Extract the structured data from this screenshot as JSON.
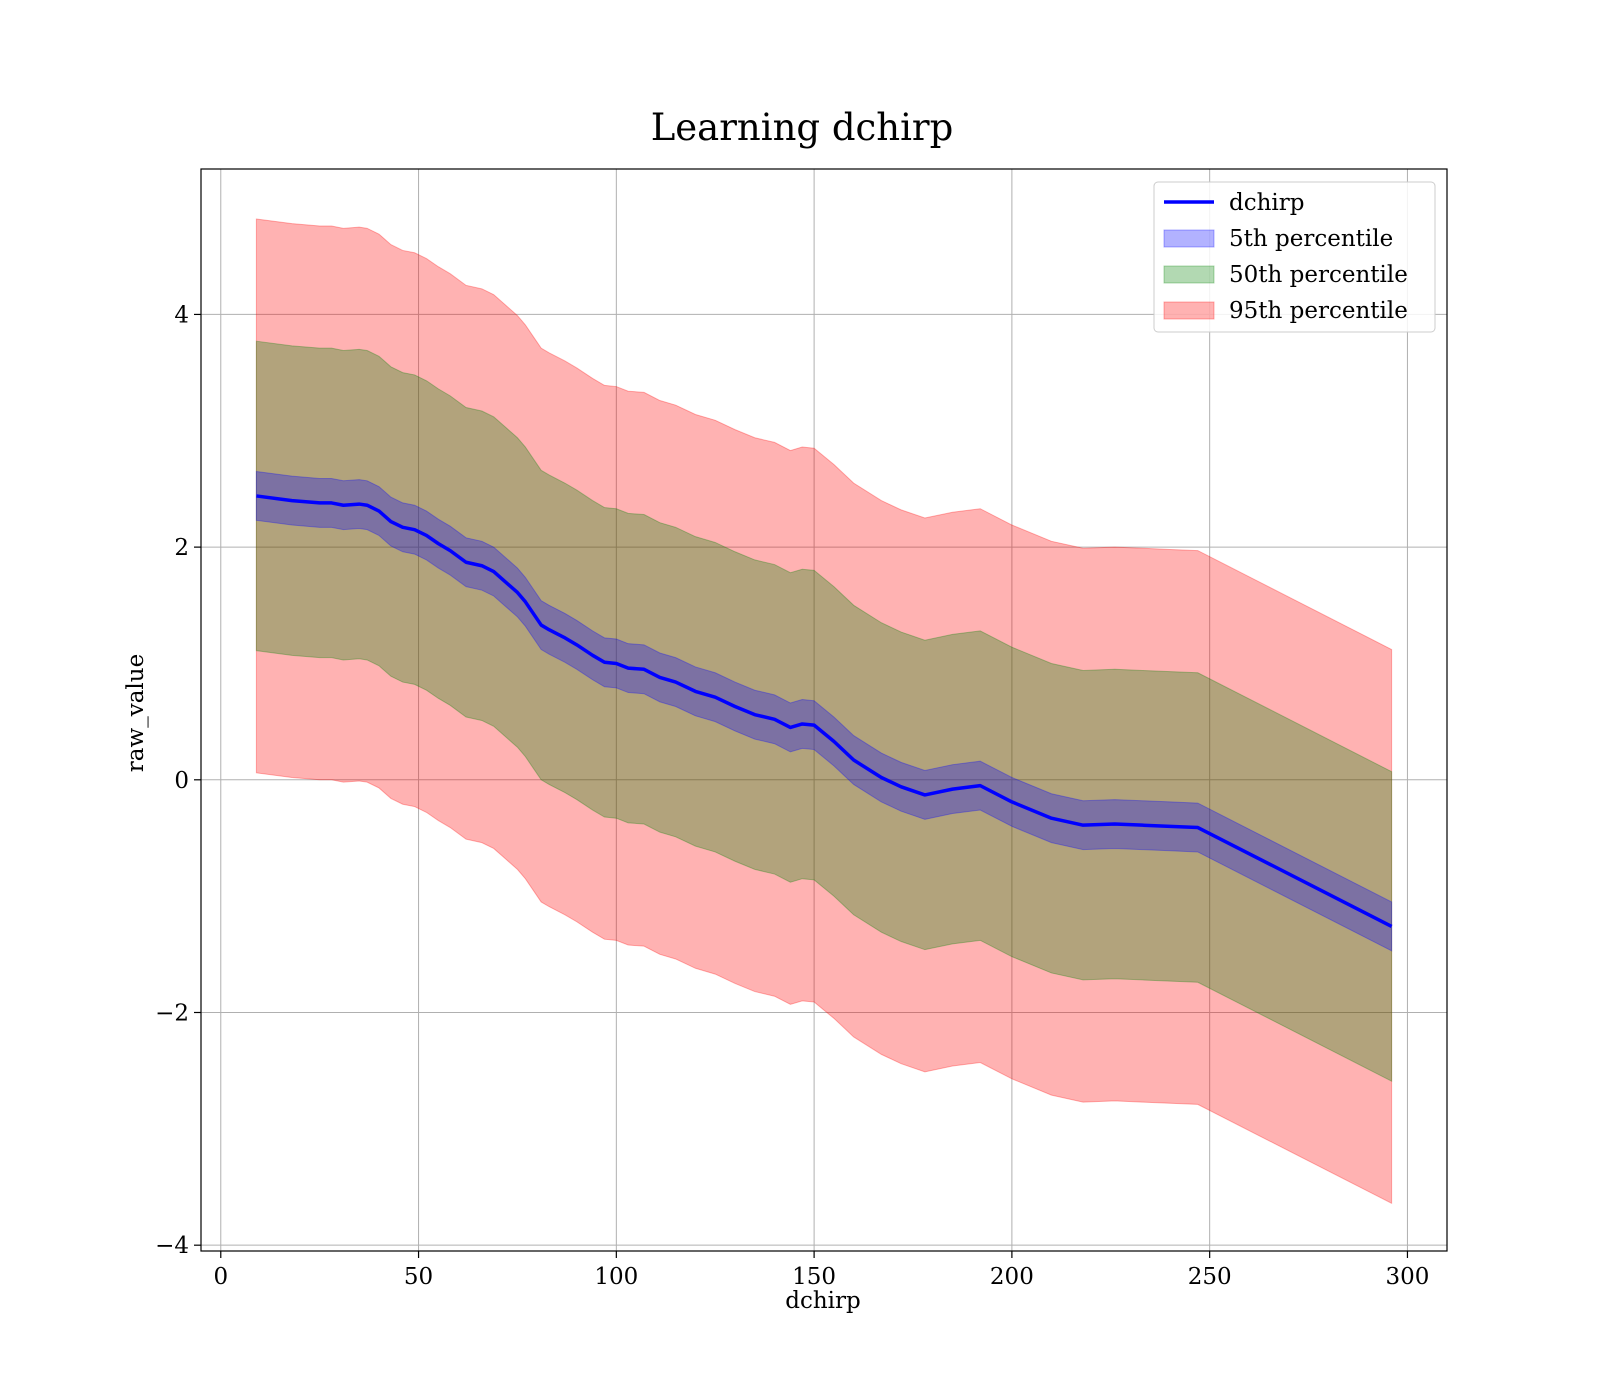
{
  "chart_data": {
    "type": "line",
    "title": "Learning dchirp",
    "xlabel": "dchirp",
    "ylabel": "raw_value",
    "xlim": [
      -5,
      310
    ],
    "ylim": [
      -4.05,
      5.25
    ],
    "xticks": [
      0,
      50,
      100,
      150,
      200,
      250,
      300
    ],
    "yticks": [
      -4,
      -2,
      0,
      2,
      4
    ],
    "xtick_labels": [
      "0",
      "50",
      "100",
      "150",
      "200",
      "250",
      "300"
    ],
    "ytick_labels": [
      "−4",
      "−2",
      "0",
      "2",
      "4"
    ],
    "grid": true,
    "legend_position": "upper right",
    "x": [
      9,
      18,
      25,
      28,
      31,
      35,
      37,
      40,
      43,
      46,
      49,
      52,
      55,
      58,
      62,
      66,
      69,
      72,
      75,
      77,
      79,
      81,
      83,
      87,
      90,
      94,
      97,
      100,
      103,
      107,
      111,
      115,
      120,
      125,
      130,
      135,
      140,
      144,
      147,
      150,
      155,
      160,
      167,
      172,
      178,
      185,
      192,
      200,
      210,
      218,
      226,
      233,
      240,
      247,
      296
    ],
    "series": [
      {
        "name": "dchirp",
        "kind": "line",
        "color": "#0000ff",
        "values": [
          2.44,
          2.4,
          2.38,
          2.38,
          2.36,
          2.37,
          2.36,
          2.31,
          2.22,
          2.17,
          2.15,
          2.1,
          2.03,
          1.97,
          1.87,
          1.84,
          1.79,
          1.7,
          1.61,
          1.53,
          1.43,
          1.33,
          1.29,
          1.22,
          1.16,
          1.07,
          1.01,
          1.0,
          0.96,
          0.95,
          0.88,
          0.84,
          0.76,
          0.71,
          0.63,
          0.56,
          0.52,
          0.45,
          0.48,
          0.47,
          0.33,
          0.17,
          0.02,
          -0.06,
          -0.13,
          -0.08,
          -0.05,
          -0.19,
          -0.33,
          -0.39,
          -0.38,
          -0.39,
          -0.4,
          -0.41,
          -1.26
        ]
      },
      {
        "name": "5th percentile",
        "kind": "band",
        "color": "#0000ff",
        "opacity": 0.3,
        "half_width": 0.21
      },
      {
        "name": "50th percentile",
        "kind": "band",
        "color": "#008000",
        "opacity": 0.3,
        "half_width": 1.33
      },
      {
        "name": "95th percentile",
        "kind": "band",
        "color": "#ff0000",
        "opacity": 0.3,
        "half_width": 2.38
      }
    ]
  },
  "legend": {
    "items": [
      {
        "label": "dchirp",
        "color": "#0000ff",
        "type": "line"
      },
      {
        "label": "5th percentile",
        "color": "#0000ff",
        "type": "patch"
      },
      {
        "label": "50th percentile",
        "color": "#008000",
        "type": "patch"
      },
      {
        "label": "95th percentile",
        "color": "#ff0000",
        "type": "patch"
      }
    ]
  }
}
